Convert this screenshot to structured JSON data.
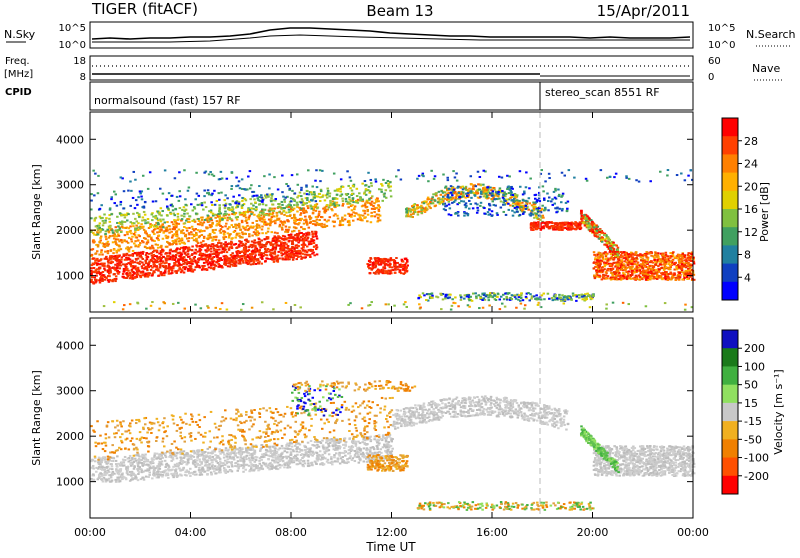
{
  "header": {
    "title": "TIGER (fitACF)",
    "beam": "Beam 13",
    "date": "15/Apr/2011"
  },
  "noise_panel": {
    "left_label": "N.Sky",
    "right_label": "N.Search",
    "left_ticks": [
      "10^5",
      "10^0"
    ],
    "right_ticks": [
      "10^5",
      "10^0"
    ]
  },
  "freq_panel": {
    "left_label_1": "Freq.",
    "left_label_2": "[MHz]",
    "right_label": "Nave",
    "left_ticks": [
      "18",
      "8"
    ],
    "right_ticks": [
      "60",
      "0"
    ]
  },
  "cpid_panel": {
    "label": "CPID",
    "mode_1": "normalsound (fast) 157 RF",
    "mode_2": "stereo_scan 8551 RF"
  },
  "colorbars": {
    "power": {
      "label": "Power [dB]",
      "ticks": [
        "28",
        "24",
        "20",
        "16",
        "12",
        "8",
        "4"
      ],
      "colors": [
        "#ff0000",
        "#ff4000",
        "#ff8000",
        "#ffb000",
        "#e0d000",
        "#80c040",
        "#40a060",
        "#2080a0",
        "#1040c0",
        "#0000ff"
      ]
    },
    "velocity": {
      "label": "Velocity [m s⁻¹]",
      "ticks": [
        "200",
        "100",
        "50",
        "15",
        "-15",
        "-50",
        "-100",
        "-200"
      ],
      "colors": [
        "#1010c0",
        "#1a7a1a",
        "#40b040",
        "#90e060",
        "#c8c8c8",
        "#f0b020",
        "#f08000",
        "#ff5000",
        "#ff0000"
      ]
    }
  },
  "chart_data": [
    {
      "type": "heatmap",
      "title": "",
      "xlabel": "",
      "ylabel": "Slant Range [km]",
      "x_ticks": [
        "00:00",
        "04:00",
        "08:00",
        "12:00",
        "16:00",
        "20:00",
        "00:00"
      ],
      "y_ticks": [
        "1000",
        "2000",
        "3000",
        "4000"
      ],
      "xlim": [
        0,
        24
      ],
      "ylim": [
        200,
        4600
      ],
      "colorbar_label": "Power [dB]"
    },
    {
      "type": "heatmap",
      "title": "",
      "xlabel": "Time UT",
      "ylabel": "Slant Range [km]",
      "x_ticks": [
        "00:00",
        "04:00",
        "08:00",
        "12:00",
        "16:00",
        "20:00",
        "00:00"
      ],
      "y_ticks": [
        "1000",
        "2000",
        "3000",
        "4000"
      ],
      "xlim": [
        0,
        24
      ],
      "ylim": [
        200,
        4600
      ],
      "colorbar_label": "Velocity [m s⁻¹]"
    }
  ]
}
